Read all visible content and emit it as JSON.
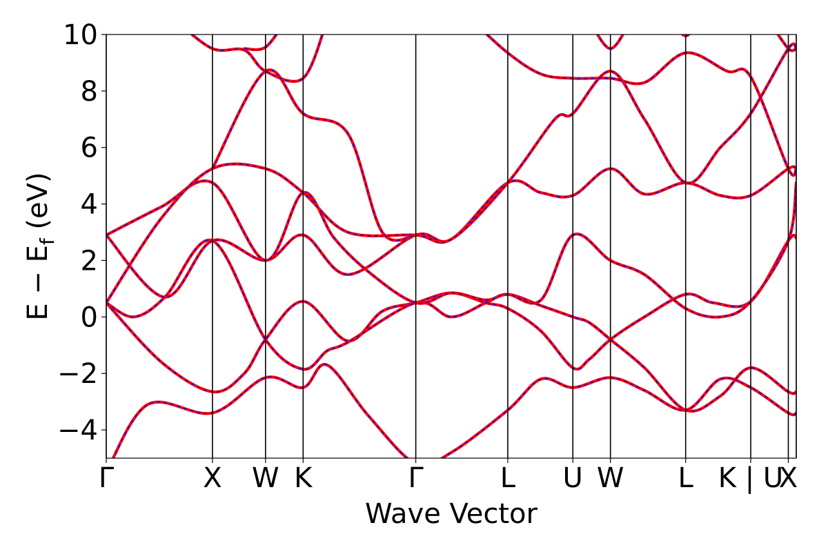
{
  "chart_data": {
    "type": "line",
    "xlabel": "Wave Vector",
    "ylabel_main": "E − E",
    "ylabel_sub": "f",
    "ylabel_unit": " (eV)",
    "ylim": [
      -5,
      10
    ],
    "yticks": [
      -4,
      -2,
      0,
      2,
      4,
      6,
      8,
      10
    ],
    "ytick_labels": [
      "−4",
      "−2",
      "0",
      "2",
      "4",
      "6",
      "8",
      "10"
    ],
    "xlim": [
      0,
      10
    ],
    "kpoints": [
      {
        "label": "Γ",
        "x": 0
      },
      {
        "label": "X",
        "x": 1.539
      },
      {
        "label": "W",
        "x": 2.308
      },
      {
        "label": "K",
        "x": 2.853
      },
      {
        "label": "Γ",
        "x": 4.486
      },
      {
        "label": "L",
        "x": 5.819
      },
      {
        "label": "U",
        "x": 6.762
      },
      {
        "label": "W",
        "x": 7.307
      },
      {
        "label": "L",
        "x": 8.397
      },
      {
        "label": "K | U",
        "x": 9.34
      },
      {
        "label": "X",
        "x": 9.885
      }
    ],
    "vlines": [
      0,
      1.539,
      2.308,
      2.853,
      4.486,
      5.819,
      6.762,
      7.307,
      8.397,
      9.34,
      9.885,
      10
    ],
    "series_style": {
      "primary_color": "#ff0000",
      "overlay_color": "#0000ff",
      "overlay_dashed": true
    },
    "bands": [
      [
        [
          0,
          0.5
        ],
        [
          0.8,
          -1.6
        ],
        [
          1.539,
          -2.65
        ],
        [
          2.0,
          -2.0
        ],
        [
          2.308,
          -0.8
        ],
        [
          2.853,
          0.55
        ],
        [
          3.5,
          -0.85
        ],
        [
          4.0,
          0.2
        ],
        [
          4.486,
          0.5
        ],
        [
          5.0,
          0.85
        ],
        [
          5.5,
          0.5
        ],
        [
          5.819,
          0.3
        ],
        [
          6.3,
          -0.5
        ],
        [
          6.762,
          -1.8
        ],
        [
          7.0,
          -1.5
        ],
        [
          7.307,
          -0.8
        ],
        [
          7.8,
          0.0
        ],
        [
          8.397,
          0.8
        ],
        [
          8.8,
          0.5
        ],
        [
          9.34,
          0.55
        ],
        [
          9.885,
          2.7
        ],
        [
          10,
          2.8
        ]
      ],
      [
        [
          0,
          0.5
        ],
        [
          0.4,
          0.0
        ],
        [
          0.85,
          0.7
        ],
        [
          1.539,
          2.7
        ],
        [
          2.308,
          -0.8
        ],
        [
          2.853,
          -1.85
        ],
        [
          3.2,
          -1.2
        ],
        [
          3.5,
          -0.9
        ],
        [
          4.486,
          0.5
        ],
        [
          5.0,
          0.0
        ],
        [
          5.5,
          0.5
        ],
        [
          5.819,
          0.8
        ],
        [
          6.3,
          0.4
        ],
        [
          6.762,
          0.0
        ],
        [
          7.0,
          -0.2
        ],
        [
          7.307,
          -0.8
        ],
        [
          7.8,
          -1.8
        ],
        [
          8.397,
          -3.3
        ],
        [
          8.9,
          -2.8
        ],
        [
          9.34,
          -1.8
        ],
        [
          9.885,
          -2.65
        ],
        [
          10,
          -2.65
        ]
      ],
      [
        [
          0,
          2.9
        ],
        [
          0.85,
          0.7
        ],
        [
          1.539,
          2.7
        ],
        [
          2.308,
          2.0
        ],
        [
          2.853,
          2.9
        ],
        [
          3.5,
          1.5
        ],
        [
          4.486,
          2.9
        ],
        [
          5.0,
          2.75
        ],
        [
          5.819,
          4.75
        ],
        [
          6.3,
          4.4
        ],
        [
          6.762,
          4.3
        ],
        [
          7.307,
          5.25
        ],
        [
          7.8,
          4.35
        ],
        [
          8.397,
          4.75
        ],
        [
          8.9,
          4.3
        ],
        [
          9.34,
          4.3
        ],
        [
          9.885,
          5.25
        ],
        [
          10,
          5.25
        ]
      ],
      [
        [
          0,
          2.9
        ],
        [
          0.8,
          3.9
        ],
        [
          1.539,
          4.75
        ],
        [
          2.308,
          2.0
        ],
        [
          2.853,
          4.4
        ],
        [
          3.3,
          2.8
        ],
        [
          3.8,
          1.6
        ],
        [
          4.486,
          0.5
        ],
        [
          5.0,
          0.85
        ],
        [
          5.5,
          0.6
        ],
        [
          5.819,
          0.8
        ],
        [
          6.3,
          0.6
        ],
        [
          6.762,
          2.9
        ],
        [
          7.307,
          2.0
        ],
        [
          7.8,
          1.5
        ],
        [
          8.397,
          0.3
        ],
        [
          8.9,
          0.0
        ],
        [
          9.34,
          0.55
        ],
        [
          9.885,
          2.7
        ],
        [
          10,
          4.75
        ]
      ],
      [
        [
          0,
          0.5
        ],
        [
          0.8,
          3.5
        ],
        [
          1.539,
          5.25
        ],
        [
          2.308,
          5.25
        ],
        [
          2.853,
          4.4
        ],
        [
          3.5,
          3.0
        ],
        [
          4.486,
          2.9
        ],
        [
          5.0,
          2.75
        ],
        [
          5.819,
          4.75
        ],
        [
          6.5,
          7.0
        ],
        [
          6.762,
          7.2
        ],
        [
          7.307,
          8.7
        ],
        [
          7.8,
          7.0
        ],
        [
          8.397,
          4.75
        ],
        [
          8.9,
          6.0
        ],
        [
          9.34,
          7.2
        ],
        [
          9.885,
          9.5
        ],
        [
          10,
          9.5
        ]
      ],
      [
        [
          0,
          -5.5
        ],
        [
          0.6,
          -3.1
        ],
        [
          1.539,
          -3.4
        ],
        [
          2.308,
          -2.15
        ],
        [
          2.853,
          -2.5
        ],
        [
          3.2,
          -1.7
        ],
        [
          3.8,
          -3.5
        ],
        [
          4.486,
          -5.2
        ],
        [
          5.0,
          -4.8
        ],
        [
          5.819,
          -3.3
        ],
        [
          6.3,
          -2.2
        ],
        [
          6.762,
          -2.5
        ],
        [
          7.307,
          -2.15
        ],
        [
          7.8,
          -2.6
        ],
        [
          8.397,
          -3.3
        ],
        [
          8.9,
          -2.2
        ],
        [
          9.34,
          -2.5
        ],
        [
          9.885,
          -3.4
        ],
        [
          10,
          -3.4
        ]
      ],
      [
        [
          1.539,
          5.25
        ],
        [
          2.308,
          8.7
        ],
        [
          2.853,
          7.2
        ],
        [
          3.5,
          6.5
        ],
        [
          4.0,
          3.0
        ],
        [
          4.486,
          2.9
        ]
      ],
      [
        [
          1.0,
          10.5
        ],
        [
          1.539,
          9.5
        ],
        [
          2.0,
          9.45
        ],
        [
          2.308,
          8.7
        ],
        [
          2.853,
          8.45
        ],
        [
          3.2,
          10.5
        ]
      ],
      [
        [
          5.3,
          10.5
        ],
        [
          5.819,
          9.35
        ],
        [
          6.3,
          8.6
        ],
        [
          6.762,
          8.45
        ],
        [
          7.307,
          8.45
        ],
        [
          7.8,
          8.3
        ],
        [
          8.397,
          9.35
        ],
        [
          9.0,
          8.7
        ],
        [
          9.34,
          8.5
        ],
        [
          9.885,
          5.25
        ],
        [
          10,
          5.25
        ]
      ],
      [
        [
          2.0,
          9.5
        ],
        [
          2.308,
          9.55
        ],
        [
          2.6,
          10.5
        ]
      ],
      [
        [
          7.0,
          10.5
        ],
        [
          7.307,
          9.5
        ],
        [
          7.6,
          10.5
        ]
      ],
      [
        [
          8.2,
          10.5
        ],
        [
          8.397,
          9.95
        ],
        [
          8.6,
          10.5
        ]
      ],
      [
        [
          9.6,
          10.5
        ],
        [
          9.885,
          9.5
        ],
        [
          10,
          9.5
        ]
      ]
    ]
  }
}
